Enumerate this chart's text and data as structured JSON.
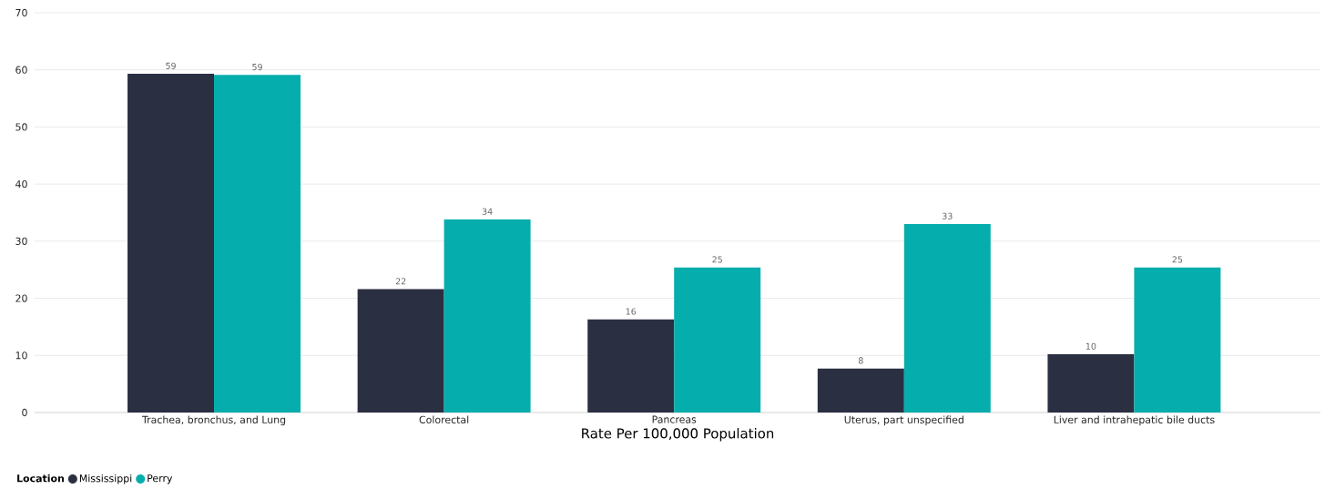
{
  "chart_data": {
    "type": "bar",
    "categories": [
      "Trachea, bronchus, and Lung",
      "Colorectal",
      "Pancreas",
      "Uterus, part unspecified",
      "Liver and intrahepatic bile ducts"
    ],
    "series": [
      {
        "name": "Mississippi",
        "color": "#2b2f42",
        "values": [
          59.3,
          21.6,
          16.3,
          7.7,
          10.2
        ],
        "value_labels": [
          "59",
          "22",
          "16",
          "8",
          "10"
        ]
      },
      {
        "name": "Perry",
        "color": "#05aeac",
        "values": [
          59.1,
          33.8,
          25.4,
          33.0,
          25.4
        ],
        "value_labels": [
          "59",
          "34",
          "25",
          "33",
          "25"
        ]
      }
    ],
    "xlabel": "Rate Per 100,000 Population",
    "legend_title": "Location",
    "legend": "bottom left",
    "grid": "y",
    "ylim": [
      0,
      70
    ],
    "yticks": [
      0,
      10,
      20,
      30,
      40,
      50,
      60,
      70
    ]
  }
}
